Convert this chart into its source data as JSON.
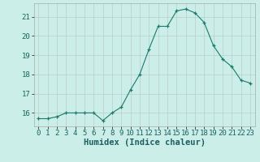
{
  "x": [
    0,
    1,
    2,
    3,
    4,
    5,
    6,
    7,
    8,
    9,
    10,
    11,
    12,
    13,
    14,
    15,
    16,
    17,
    18,
    19,
    20,
    21,
    22,
    23
  ],
  "y": [
    15.7,
    15.7,
    15.8,
    16.0,
    16.0,
    16.0,
    16.0,
    15.6,
    16.0,
    16.3,
    17.2,
    18.0,
    19.3,
    20.5,
    20.5,
    21.3,
    21.4,
    21.2,
    20.7,
    19.5,
    18.8,
    18.4,
    17.7,
    17.55
  ],
  "line_color": "#1a7a6e",
  "marker": "+",
  "bg_color": "#cceee8",
  "grid_color": "#bbcccc",
  "xlabel": "Humidex (Indice chaleur)",
  "ylim": [
    15.3,
    21.7
  ],
  "xlim": [
    -0.5,
    23.5
  ],
  "yticks": [
    16,
    17,
    18,
    19,
    20,
    21
  ],
  "xticks": [
    0,
    1,
    2,
    3,
    4,
    5,
    6,
    7,
    8,
    9,
    10,
    11,
    12,
    13,
    14,
    15,
    16,
    17,
    18,
    19,
    20,
    21,
    22,
    23
  ],
  "xlabel_fontsize": 7.5,
  "tick_fontsize": 6.5
}
